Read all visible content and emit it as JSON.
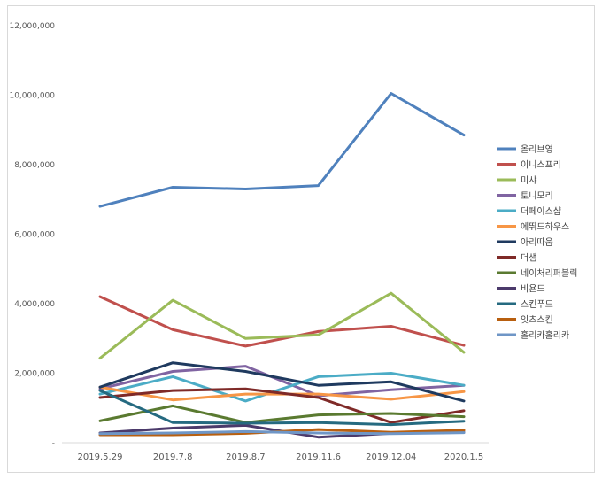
{
  "chart_data": {
    "type": "line",
    "title": "",
    "xlabel": "",
    "ylabel": "",
    "categories": [
      "2019.5.29",
      "2019.7.8",
      "2019.8.7",
      "2019.11.6",
      "2019.12.04",
      "2020.1.5"
    ],
    "ylim": [
      0,
      12000000
    ],
    "yticks": [
      0,
      2000000,
      4000000,
      6000000,
      8000000,
      10000000,
      12000000
    ],
    "ytick_labels": [
      "-",
      "2,000,000",
      "4,000,000",
      "6,000,000",
      "8,000,000",
      "10,000,000",
      "12,000,000"
    ],
    "grid": false,
    "legend_position": "right",
    "series": [
      {
        "name": "올리브영",
        "color": "#4f81bd",
        "values": [
          6800000,
          7350000,
          7300000,
          7400000,
          10050000,
          8850000
        ]
      },
      {
        "name": "이니스프리",
        "color": "#c0504d",
        "values": [
          4200000,
          3250000,
          2780000,
          3200000,
          3350000,
          2800000
        ]
      },
      {
        "name": "미샤",
        "color": "#9bbb59",
        "values": [
          2430000,
          4100000,
          3000000,
          3100000,
          4300000,
          2600000
        ]
      },
      {
        "name": "토니모리",
        "color": "#8064a2",
        "values": [
          1550000,
          2050000,
          2200000,
          1350000,
          1520000,
          1650000
        ]
      },
      {
        "name": "더페이스샵",
        "color": "#4bacc6",
        "values": [
          1400000,
          1900000,
          1200000,
          1900000,
          2000000,
          1650000
        ]
      },
      {
        "name": "에뛰드하우스",
        "color": "#f79646",
        "values": [
          1600000,
          1230000,
          1400000,
          1400000,
          1250000,
          1470000
        ]
      },
      {
        "name": "아리따움",
        "color": "#1f3a5f",
        "values": [
          1600000,
          2300000,
          2050000,
          1650000,
          1750000,
          1200000
        ]
      },
      {
        "name": "더샘",
        "color": "#7f2a28",
        "values": [
          1300000,
          1500000,
          1550000,
          1300000,
          580000,
          920000
        ]
      },
      {
        "name": "네이처리퍼블릭",
        "color": "#5a7a30",
        "values": [
          630000,
          1060000,
          580000,
          800000,
          840000,
          750000
        ]
      },
      {
        "name": "비욘드",
        "color": "#4b3a6b",
        "values": [
          280000,
          420000,
          500000,
          160000,
          270000,
          300000
        ]
      },
      {
        "name": "스킨푸드",
        "color": "#256a80",
        "values": [
          1500000,
          580000,
          560000,
          580000,
          520000,
          620000
        ]
      },
      {
        "name": "잇츠스킨",
        "color": "#b85f0f",
        "values": [
          230000,
          230000,
          270000,
          380000,
          300000,
          360000
        ]
      },
      {
        "name": "홀리카홀리카",
        "color": "#6f96c6",
        "values": [
          260000,
          280000,
          320000,
          280000,
          260000,
          290000
        ]
      }
    ]
  }
}
